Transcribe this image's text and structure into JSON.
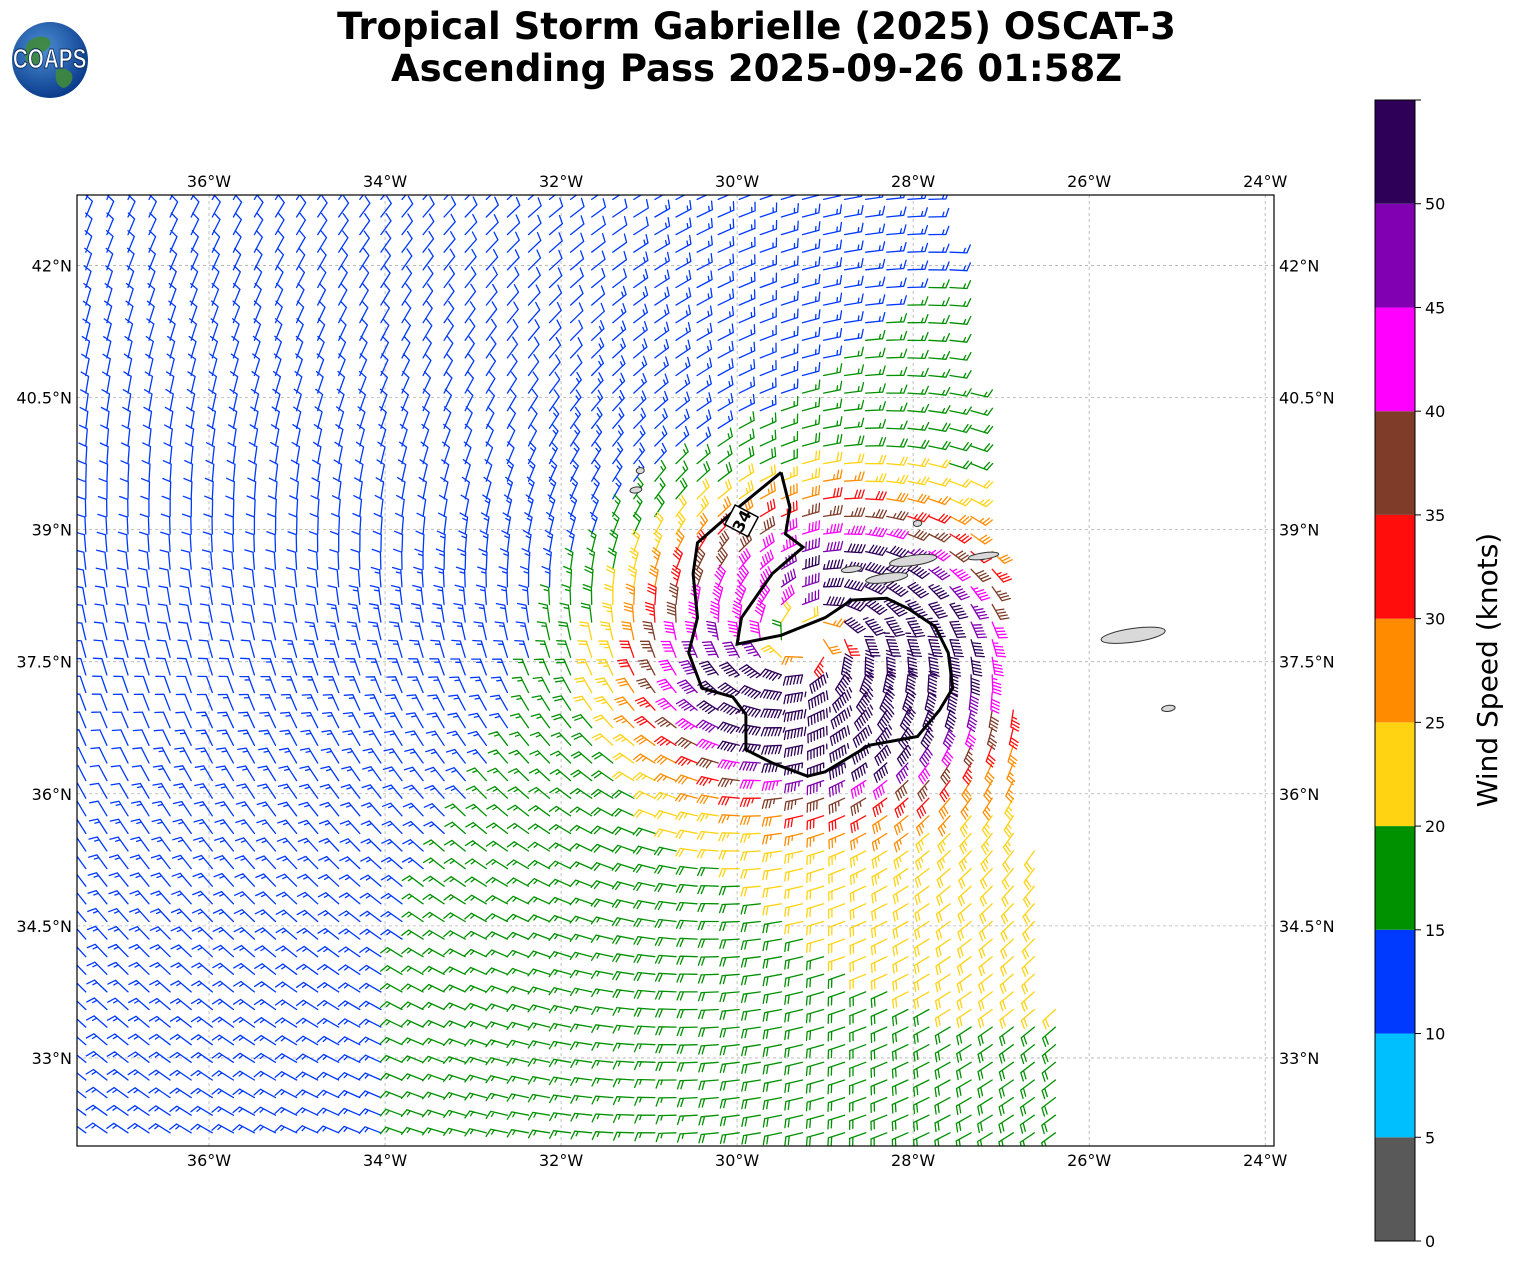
{
  "title": {
    "line1": "Tropical Storm Gabrielle (2025) OSCAT-3",
    "line2": "Ascending Pass 2025-09-26 01:58Z"
  },
  "logo": {
    "text": "COAPS"
  },
  "map": {
    "lon_range": [
      -37.5,
      -23.9
    ],
    "lat_range": [
      32.0,
      42.8
    ],
    "lon_ticks": [
      "36°W",
      "34°W",
      "32°W",
      "30°W",
      "28°W",
      "26°W",
      "24°W"
    ],
    "lon_tick_values": [
      -36,
      -34,
      -32,
      -30,
      -28,
      -26,
      -24
    ],
    "lat_ticks": [
      "42°N",
      "40.5°N",
      "39°N",
      "37.5°N",
      "36°N",
      "34.5°N",
      "33°N"
    ],
    "lat_tick_values": [
      42,
      40.5,
      39,
      37.5,
      36,
      34.5,
      33
    ],
    "grid": true,
    "storm_center": {
      "lon": -29.2,
      "lat": 37.7
    },
    "contour_label": "34",
    "islands": [
      {
        "lon": -31.15,
        "lat": 39.45,
        "size": 0.07
      },
      {
        "lon": -31.1,
        "lat": 39.67,
        "size": 0.04
      },
      {
        "lon": -28.7,
        "lat": 38.55,
        "size": 0.12
      },
      {
        "lon": -28.3,
        "lat": 38.45,
        "size": 0.25
      },
      {
        "lon": -28.0,
        "lat": 38.65,
        "size": 0.28
      },
      {
        "lon": -27.2,
        "lat": 38.7,
        "size": 0.18
      },
      {
        "lon": -27.95,
        "lat": 39.07,
        "size": 0.05
      },
      {
        "lon": -25.5,
        "lat": 37.8,
        "size": 0.38
      },
      {
        "lon": -25.1,
        "lat": 36.97,
        "size": 0.08
      }
    ]
  },
  "colorbar": {
    "label": "Wind Speed (knots)",
    "bins": [
      {
        "min": 0,
        "max": 5,
        "color": "#595959"
      },
      {
        "min": 5,
        "max": 10,
        "color": "#00bfff"
      },
      {
        "min": 10,
        "max": 15,
        "color": "#0039ff"
      },
      {
        "min": 15,
        "max": 20,
        "color": "#009100"
      },
      {
        "min": 20,
        "max": 25,
        "color": "#ffd212"
      },
      {
        "min": 25,
        "max": 30,
        "color": "#ff8c00"
      },
      {
        "min": 30,
        "max": 35,
        "color": "#ff0d0d"
      },
      {
        "min": 35,
        "max": 40,
        "color": "#7f3c28"
      },
      {
        "min": 40,
        "max": 45,
        "color": "#ff00ff"
      },
      {
        "min": 45,
        "max": 50,
        "color": "#8000b2"
      },
      {
        "min": 50,
        "max": 55,
        "color": "#2e0058"
      }
    ],
    "tick_labels": [
      "0",
      "5",
      "10",
      "15",
      "20",
      "25",
      "30",
      "35",
      "40",
      "45",
      "50"
    ]
  }
}
